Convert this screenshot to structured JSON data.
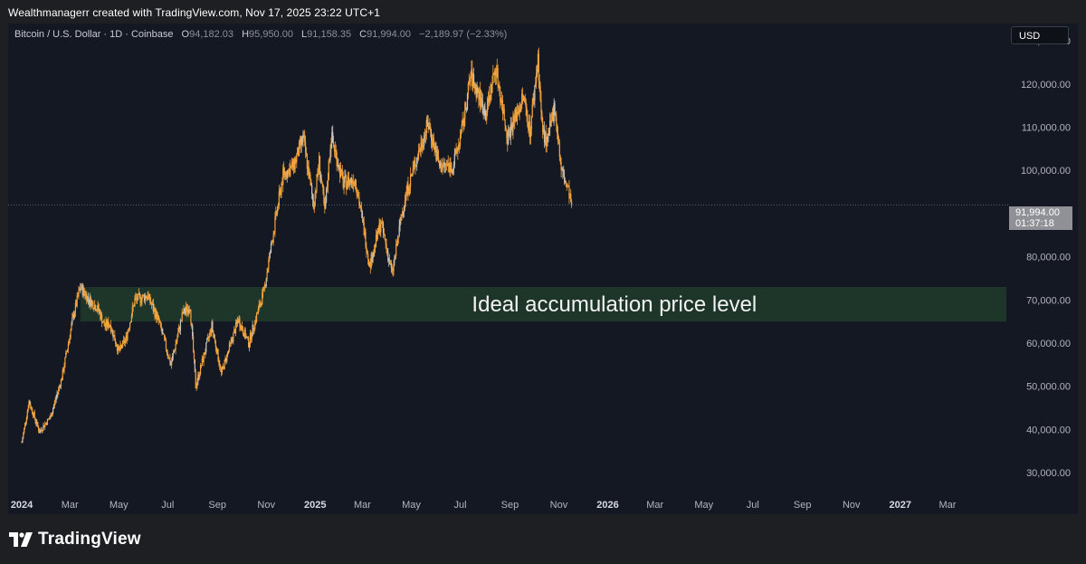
{
  "credit_line": "Wealthmanagerr created with TradingView.com, Nov 17, 2025 23:22 UTC+1",
  "legend": {
    "symbol": "Bitcoin / U.S. Dollar · 1D · Coinbase",
    "o_label": "O",
    "o_value": "94,182.03",
    "h_label": "H",
    "h_value": "95,950.00",
    "l_label": "L",
    "l_value": "91,158.35",
    "c_label": "C",
    "c_value": "91,994.00",
    "change": "−2,189.97 (−2.33%)"
  },
  "currency_button": "USD",
  "price_tag": {
    "price": "91,994.00",
    "countdown": "01:37:18"
  },
  "footer": {
    "brand": "TradingView"
  },
  "colors": {
    "candle": "#f2a33c",
    "candle_alt": "#c8c6c2",
    "zone": "#1f3a2b",
    "background": "#141823"
  },
  "chart_data": {
    "type": "line",
    "series": [
      {
        "points": [
          [
            "2024-01-01",
            37000
          ],
          [
            "2024-01-10",
            46500
          ],
          [
            "2024-01-23",
            39500
          ],
          [
            "2024-02-06",
            43000
          ],
          [
            "2024-02-20",
            52000
          ],
          [
            "2024-03-05",
            66000
          ],
          [
            "2024-03-14",
            73000
          ],
          [
            "2024-03-25",
            70000
          ],
          [
            "2024-04-05",
            68000
          ],
          [
            "2024-04-13",
            64000
          ],
          [
            "2024-04-20",
            64500
          ],
          [
            "2024-05-01",
            58000
          ],
          [
            "2024-05-10",
            61000
          ],
          [
            "2024-05-21",
            70000
          ],
          [
            "2024-06-06",
            71000
          ],
          [
            "2024-06-20",
            65000
          ],
          [
            "2024-07-05",
            55000
          ],
          [
            "2024-07-20",
            67000
          ],
          [
            "2024-07-29",
            68500
          ],
          [
            "2024-08-05",
            50000
          ],
          [
            "2024-08-25",
            64000
          ],
          [
            "2024-09-06",
            53000
          ],
          [
            "2024-09-27",
            65500
          ],
          [
            "2024-10-10",
            60000
          ],
          [
            "2024-10-29",
            72000
          ],
          [
            "2024-11-12",
            88000
          ],
          [
            "2024-11-22",
            99000
          ],
          [
            "2024-12-05",
            101000
          ],
          [
            "2024-12-17",
            107500
          ],
          [
            "2024-12-30",
            92000
          ],
          [
            "2025-01-06",
            102000
          ],
          [
            "2025-01-13",
            90000
          ],
          [
            "2025-01-21",
            108000
          ],
          [
            "2025-02-05",
            97000
          ],
          [
            "2025-02-20",
            98000
          ],
          [
            "2025-03-03",
            86000
          ],
          [
            "2025-03-10",
            78000
          ],
          [
            "2025-03-24",
            88000
          ],
          [
            "2025-04-07",
            76000
          ],
          [
            "2025-04-22",
            93000
          ],
          [
            "2025-05-08",
            103000
          ],
          [
            "2025-05-22",
            111000
          ],
          [
            "2025-06-05",
            101000
          ],
          [
            "2025-06-22",
            101000
          ],
          [
            "2025-07-03",
            109000
          ],
          [
            "2025-07-14",
            122000
          ],
          [
            "2025-07-25",
            117000
          ],
          [
            "2025-08-02",
            113000
          ],
          [
            "2025-08-14",
            124000
          ],
          [
            "2025-08-29",
            108000
          ],
          [
            "2025-09-18",
            117000
          ],
          [
            "2025-09-26",
            109000
          ],
          [
            "2025-10-06",
            126000
          ],
          [
            "2025-10-11",
            110000
          ],
          [
            "2025-10-17",
            106000
          ],
          [
            "2025-10-27",
            115000
          ],
          [
            "2025-11-04",
            100000
          ],
          [
            "2025-11-14",
            94500
          ],
          [
            "2025-11-17",
            91994
          ]
        ]
      }
    ],
    "y_ticks": [
      "130,000.00",
      "120,000.00",
      "110,000.00",
      "100,000.00",
      "90,000.00",
      "80,000.00",
      "70,000.00",
      "60,000.00",
      "50,000.00",
      "40,000.00",
      "30,000.00"
    ],
    "y_tick_values": [
      130000,
      120000,
      110000,
      100000,
      90000,
      80000,
      70000,
      60000,
      50000,
      40000,
      30000
    ],
    "x_ticks": [
      {
        "label": "2024",
        "date": "2024-01-01",
        "bold": true
      },
      {
        "label": "Mar",
        "date": "2024-03-01",
        "bold": false
      },
      {
        "label": "May",
        "date": "2024-05-01",
        "bold": false
      },
      {
        "label": "Jul",
        "date": "2024-07-01",
        "bold": false
      },
      {
        "label": "Sep",
        "date": "2024-09-01",
        "bold": false
      },
      {
        "label": "Nov",
        "date": "2024-11-01",
        "bold": false
      },
      {
        "label": "2025",
        "date": "2025-01-01",
        "bold": true
      },
      {
        "label": "Mar",
        "date": "2025-03-01",
        "bold": false
      },
      {
        "label": "May",
        "date": "2025-05-01",
        "bold": false
      },
      {
        "label": "Jul",
        "date": "2025-07-01",
        "bold": false
      },
      {
        "label": "Sep",
        "date": "2025-09-01",
        "bold": false
      },
      {
        "label": "Nov",
        "date": "2025-11-01",
        "bold": false
      },
      {
        "label": "2026",
        "date": "2026-01-01",
        "bold": true
      },
      {
        "label": "Mar",
        "date": "2026-03-01",
        "bold": false
      },
      {
        "label": "May",
        "date": "2026-05-01",
        "bold": false
      },
      {
        "label": "Jul",
        "date": "2026-07-01",
        "bold": false
      },
      {
        "label": "Sep",
        "date": "2026-09-01",
        "bold": false
      },
      {
        "label": "Nov",
        "date": "2026-11-01",
        "bold": false
      },
      {
        "label": "2027",
        "date": "2027-01-01",
        "bold": true
      },
      {
        "label": "Mar",
        "date": "2027-03-01",
        "bold": false
      }
    ],
    "x_range": [
      "2023-12-15",
      "2027-05-10"
    ],
    "ylim": [
      25000,
      134000
    ],
    "last_price": 91994,
    "zone": {
      "label": "Ideal accumulation price level",
      "from": 65000,
      "to": 73000,
      "start": "2024-03-14"
    },
    "grid": false
  }
}
